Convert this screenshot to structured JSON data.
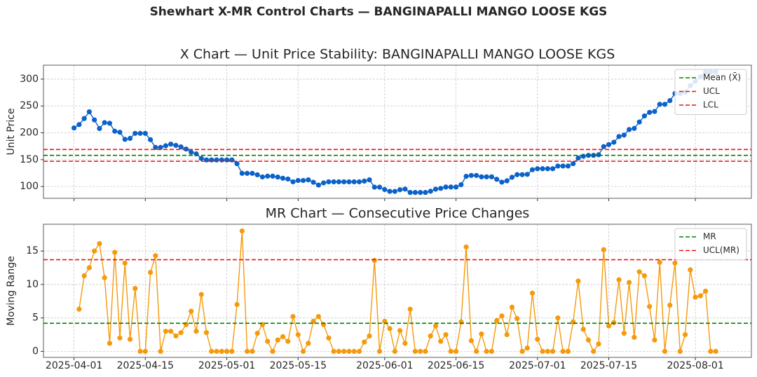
{
  "title": "Shewhart X-MR Control Charts — BANGINAPALLI MANGO LOOSE KGS",
  "chart_data": [
    {
      "type": "line",
      "title": "X Chart — Unit Price Stability: BANGINAPALLI MANGO LOOSE KGS",
      "ylabel": "Unit Price",
      "x": [
        "2025-04-01",
        "2025-04-02",
        "2025-04-03",
        "2025-04-04",
        "2025-04-05",
        "2025-04-06",
        "2025-04-07",
        "2025-04-08",
        "2025-04-09",
        "2025-04-10",
        "2025-04-11",
        "2025-04-12",
        "2025-04-13",
        "2025-04-14",
        "2025-04-15",
        "2025-04-16",
        "2025-04-17",
        "2025-04-18",
        "2025-04-19",
        "2025-04-20",
        "2025-04-21",
        "2025-04-22",
        "2025-04-23",
        "2025-04-24",
        "2025-04-25",
        "2025-04-26",
        "2025-04-27",
        "2025-04-28",
        "2025-04-29",
        "2025-04-30",
        "2025-05-01",
        "2025-05-02",
        "2025-05-03",
        "2025-05-04",
        "2025-05-05",
        "2025-05-06",
        "2025-05-07",
        "2025-05-08",
        "2025-05-09",
        "2025-05-10",
        "2025-05-11",
        "2025-05-12",
        "2025-05-13",
        "2025-05-14",
        "2025-05-15",
        "2025-05-16",
        "2025-05-17",
        "2025-05-18",
        "2025-05-19",
        "2025-05-20",
        "2025-05-21",
        "2025-05-22",
        "2025-05-23",
        "2025-05-24",
        "2025-05-25",
        "2025-05-26",
        "2025-05-27",
        "2025-05-28",
        "2025-05-29",
        "2025-05-30",
        "2025-05-31",
        "2025-06-01",
        "2025-06-02",
        "2025-06-03",
        "2025-06-04",
        "2025-06-05",
        "2025-06-06",
        "2025-06-07",
        "2025-06-08",
        "2025-06-09",
        "2025-06-10",
        "2025-06-11",
        "2025-06-12",
        "2025-06-13",
        "2025-06-14",
        "2025-06-15",
        "2025-06-16",
        "2025-06-17",
        "2025-06-18",
        "2025-06-19",
        "2025-06-20",
        "2025-06-21",
        "2025-06-22",
        "2025-06-23",
        "2025-06-24",
        "2025-06-25",
        "2025-06-26",
        "2025-06-27",
        "2025-06-28",
        "2025-06-29",
        "2025-06-30",
        "2025-07-01",
        "2025-07-02",
        "2025-07-03",
        "2025-07-04",
        "2025-07-05",
        "2025-07-06",
        "2025-07-07",
        "2025-07-08",
        "2025-07-09",
        "2025-07-10",
        "2025-07-11",
        "2025-07-12",
        "2025-07-13",
        "2025-07-14",
        "2025-07-15",
        "2025-07-16",
        "2025-07-17",
        "2025-07-18",
        "2025-07-19",
        "2025-07-20",
        "2025-07-21",
        "2025-07-22",
        "2025-07-23",
        "2025-07-24",
        "2025-07-25",
        "2025-07-26",
        "2025-07-27",
        "2025-07-28",
        "2025-07-29",
        "2025-07-30",
        "2025-07-31",
        "2025-08-01",
        "2025-08-02",
        "2025-08-03",
        "2025-08-04",
        "2025-08-05"
      ],
      "values": [
        209,
        215.3,
        226.6,
        239.1,
        224.1,
        208,
        219,
        217.8,
        203,
        201,
        187.8,
        189.6,
        199,
        199,
        199,
        187.2,
        172.9,
        172.9,
        175.9,
        178.9,
        176.6,
        173.8,
        169.8,
        163.8,
        160.8,
        152.3,
        149.5,
        149.5,
        149.5,
        149.5,
        149.5,
        149.5,
        142.5,
        124.5,
        124.5,
        124.5,
        121.8,
        117.8,
        119.3,
        119.3,
        117.6,
        115.4,
        113.9,
        108.7,
        111.2,
        111.2,
        112.4,
        107.9,
        102.7,
        106.7,
        108.7,
        108.7,
        108.7,
        108.7,
        108.7,
        108.7,
        108.7,
        110.1,
        112.4,
        98.8,
        98.8,
        94.3,
        90.9,
        90.9,
        94,
        95.2,
        88.9,
        88.9,
        88.9,
        88.9,
        91.2,
        95,
        96.5,
        99,
        99,
        99,
        103.4,
        119,
        120.6,
        120.6,
        118,
        118,
        118,
        113.4,
        108.1,
        110.6,
        117.2,
        122.1,
        122.1,
        122.6,
        131.3,
        133.1,
        133.1,
        133.1,
        133.1,
        138.1,
        138.1,
        138.1,
        142.5,
        153,
        156.3,
        158,
        158,
        159.1,
        174.3,
        178.1,
        182.4,
        193.1,
        195.8,
        206.1,
        208.2,
        220.1,
        231.4,
        238.1,
        239.8,
        253.1,
        253.1,
        260,
        273.2,
        273.2,
        275.7,
        287.9,
        296,
        304.3,
        313.3,
        313.3,
        313.3
      ],
      "color": "#0b62c8",
      "hlines": [
        {
          "name": "Mean (X̄)",
          "value": 158,
          "color": "#008000"
        },
        {
          "name": "UCL",
          "value": 169,
          "color": "#ee1111"
        },
        {
          "name": "LCL",
          "value": 147,
          "color": "#ee1111"
        }
      ],
      "xlim": [
        "2025-03-26",
        "2025-08-12"
      ],
      "ylim": [
        78,
        326
      ],
      "yticks": [
        100,
        150,
        200,
        250,
        300
      ],
      "xticks": [
        "2025-04-01",
        "2025-04-15",
        "2025-05-01",
        "2025-05-15",
        "2025-06-01",
        "2025-06-15",
        "2025-07-01",
        "2025-07-15",
        "2025-08-01"
      ],
      "grid": true,
      "legend": "upper right"
    },
    {
      "type": "line",
      "title": "MR Chart — Consecutive Price Changes",
      "ylabel": "Moving Range",
      "x": [
        "2025-04-02",
        "2025-04-03",
        "2025-04-04",
        "2025-04-05",
        "2025-04-06",
        "2025-04-07",
        "2025-04-08",
        "2025-04-09",
        "2025-04-10",
        "2025-04-11",
        "2025-04-12",
        "2025-04-13",
        "2025-04-14",
        "2025-04-15",
        "2025-04-16",
        "2025-04-17",
        "2025-04-18",
        "2025-04-19",
        "2025-04-20",
        "2025-04-21",
        "2025-04-22",
        "2025-04-23",
        "2025-04-24",
        "2025-04-25",
        "2025-04-26",
        "2025-04-27",
        "2025-04-28",
        "2025-04-29",
        "2025-04-30",
        "2025-05-01",
        "2025-05-02",
        "2025-05-03",
        "2025-05-04",
        "2025-05-05",
        "2025-05-06",
        "2025-05-07",
        "2025-05-08",
        "2025-05-09",
        "2025-05-10",
        "2025-05-11",
        "2025-05-12",
        "2025-05-13",
        "2025-05-14",
        "2025-05-15",
        "2025-05-16",
        "2025-05-17",
        "2025-05-18",
        "2025-05-19",
        "2025-05-20",
        "2025-05-21",
        "2025-05-22",
        "2025-05-23",
        "2025-05-24",
        "2025-05-25",
        "2025-05-26",
        "2025-05-27",
        "2025-05-28",
        "2025-05-29",
        "2025-05-30",
        "2025-05-31",
        "2025-06-01",
        "2025-06-02",
        "2025-06-03",
        "2025-06-04",
        "2025-06-05",
        "2025-06-06",
        "2025-06-07",
        "2025-06-08",
        "2025-06-09",
        "2025-06-10",
        "2025-06-11",
        "2025-06-12",
        "2025-06-13",
        "2025-06-14",
        "2025-06-15",
        "2025-06-16",
        "2025-06-17",
        "2025-06-18",
        "2025-06-19",
        "2025-06-20",
        "2025-06-21",
        "2025-06-22",
        "2025-06-23",
        "2025-06-24",
        "2025-06-25",
        "2025-06-26",
        "2025-06-27",
        "2025-06-28",
        "2025-06-29",
        "2025-06-30",
        "2025-07-01",
        "2025-07-02",
        "2025-07-03",
        "2025-07-04",
        "2025-07-05",
        "2025-07-06",
        "2025-07-07",
        "2025-07-08",
        "2025-07-09",
        "2025-07-10",
        "2025-07-11",
        "2025-07-12",
        "2025-07-13",
        "2025-07-14",
        "2025-07-15",
        "2025-07-16",
        "2025-07-17",
        "2025-07-18",
        "2025-07-19",
        "2025-07-20",
        "2025-07-21",
        "2025-07-22",
        "2025-07-23",
        "2025-07-24",
        "2025-07-25",
        "2025-07-26",
        "2025-07-27",
        "2025-07-28",
        "2025-07-29",
        "2025-07-30",
        "2025-07-31",
        "2025-08-01",
        "2025-08-02",
        "2025-08-03",
        "2025-08-04",
        "2025-08-05"
      ],
      "values": [
        6.3,
        11.3,
        12.5,
        15,
        16.1,
        11,
        1.2,
        14.8,
        2,
        13.2,
        1.8,
        9.4,
        0,
        0,
        11.8,
        14.3,
        0,
        3,
        3,
        2.3,
        2.8,
        4,
        6,
        3,
        8.5,
        2.8,
        0,
        0,
        0,
        0,
        0,
        7,
        18,
        0,
        0,
        2.7,
        4,
        1.5,
        0,
        1.7,
        2.2,
        1.5,
        5.2,
        2.5,
        0,
        1.2,
        4.5,
        5.2,
        4,
        2,
        0,
        0,
        0,
        0,
        0,
        0,
        1.4,
        2.3,
        13.6,
        0,
        4.5,
        3.4,
        0,
        3.1,
        1.2,
        6.3,
        0,
        0,
        0,
        2.3,
        3.8,
        1.5,
        2.5,
        0,
        0,
        4.4,
        15.6,
        1.6,
        0,
        2.6,
        0,
        0,
        4.6,
        5.3,
        2.5,
        6.6,
        4.9,
        0,
        0.5,
        8.7,
        1.8,
        0,
        0,
        0,
        5,
        0,
        0,
        4.4,
        10.5,
        3.3,
        1.7,
        0,
        1.1,
        15.2,
        3.8,
        4.3,
        10.7,
        2.7,
        10.3,
        2.1,
        11.9,
        11.3,
        6.7,
        1.7,
        13.3,
        0,
        6.9,
        13.2,
        0,
        2.5,
        12.2,
        8.1,
        8.3,
        9,
        0,
        0
      ],
      "color": "#f59a0c",
      "hlines": [
        {
          "name": "MR",
          "value": 4.2,
          "color": "#008000"
        },
        {
          "name": "UCL(MR)",
          "value": 13.7,
          "color": "#ee1111"
        }
      ],
      "xlim": [
        "2025-03-26",
        "2025-08-12"
      ],
      "ylim": [
        -0.9,
        19
      ],
      "yticks": [
        0,
        5,
        10,
        15
      ],
      "xticks": [
        "2025-04-01",
        "2025-04-15",
        "2025-05-01",
        "2025-05-15",
        "2025-06-01",
        "2025-06-15",
        "2025-07-01",
        "2025-07-15",
        "2025-08-01"
      ],
      "grid": true,
      "legend": "upper right"
    }
  ]
}
